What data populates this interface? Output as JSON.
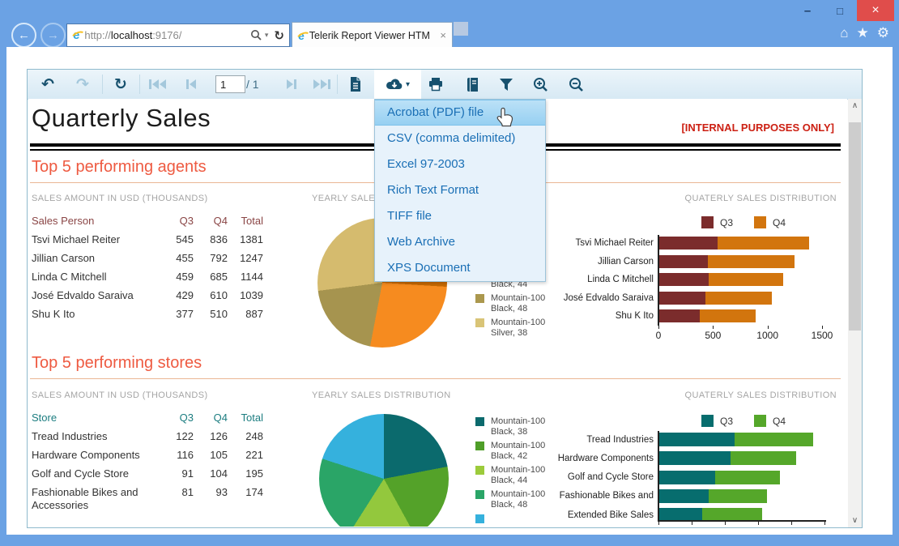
{
  "glyphs": {
    "minimize": "–",
    "maximize": "□",
    "close": "×",
    "back": "←",
    "forward": "→",
    "home": "⌂",
    "favorites": "★",
    "settings": "⚙",
    "address_caret": "▾",
    "address_refresh": "↻",
    "tab_close": "×",
    "undo": "↶",
    "redo": "↷",
    "refresh": "↻",
    "export_caret": "▾",
    "scroll_up": "∧",
    "scroll_down": "∨"
  },
  "browser": {
    "url": {
      "scheme": "http://",
      "host": "localhost",
      "rest": ":9176/"
    },
    "tab_title": "Telerik Report Viewer HTM..."
  },
  "toolbar": {
    "page_number": "1",
    "page_total": "/ 1"
  },
  "export_menu": {
    "highlighted": 0,
    "items": [
      "Acrobat (PDF) file",
      "CSV (comma delimited)",
      "Excel 97-2003",
      "Rich Text Format",
      "TIFF file",
      "Web Archive",
      "XPS Document"
    ]
  },
  "report": {
    "title": "Quarterly Sales",
    "watermark": "[INTERNAL PURPOSES ONLY]",
    "sections": [
      {
        "heading": "Top 5 performing agents",
        "caption": "SALES AMOUNT IN USD (THOUSANDS)",
        "pie_caption": "YEARLY SALES DISTRIBUTION",
        "bar_caption": "QUATERLY SALES DISTRIBUTION",
        "accent": "#8a4545",
        "table": {
          "headers": [
            "Sales Person",
            "Q3",
            "Q4",
            "Total"
          ],
          "rows": [
            [
              "Tsvi Michael Reiter",
              "545",
              "836",
              "1381"
            ],
            [
              "Jillian  Carson",
              "455",
              "792",
              "1247"
            ],
            [
              "Linda C Mitchell",
              "459",
              "685",
              "1144"
            ],
            [
              "José Edvaldo Saraiva",
              "429",
              "610",
              "1039"
            ],
            [
              "Shu K Ito",
              "377",
              "510",
              "887"
            ]
          ]
        },
        "pie": {
          "slices": [
            {
              "color": "#7a2e35",
              "value": 4
            },
            {
              "color": "#c76802",
              "value": 22
            },
            {
              "color": "#f68b1f",
              "value": 27
            },
            {
              "color": "#a6944f",
              "value": 20
            },
            {
              "color": "#d5bb6e",
              "value": 27
            }
          ],
          "legend": [
            {
              "line1": "Mountain-100",
              "line2": "Black, 44",
              "color": "#ed860d"
            },
            {
              "line1": "Mountain-100",
              "line2": "Black, 48",
              "color": "#ab984e"
            },
            {
              "line1": "Mountain-100",
              "line2": "Silver, 38",
              "color": "#d9c477"
            }
          ]
        },
        "bars": {
          "legend": [
            {
              "name": "Q3",
              "color": "#7b2c2c"
            },
            {
              "name": "Q4",
              "color": "#d2750e"
            }
          ],
          "categories": [
            "Tsvi Michael Reiter",
            "Jillian Carson",
            "Linda C Mitchell",
            "José Edvaldo Saraiva",
            "Shu K Ito"
          ],
          "q3": [
            545,
            455,
            459,
            429,
            377
          ],
          "q4": [
            836,
            792,
            685,
            610,
            510
          ],
          "xmax": 1500,
          "xticks": [
            "0",
            "500",
            "1000",
            "1500"
          ]
        }
      },
      {
        "heading": "Top 5 performing stores",
        "caption": "SALES AMOUNT IN USD (THOUSANDS)",
        "pie_caption": "YEARLY SALES DISTRIBUTION",
        "bar_caption": "QUATERLY SALES DISTRIBUTION",
        "accent": "#1c7d80",
        "table": {
          "headers": [
            "Store",
            "Q3",
            "Q4",
            "Total"
          ],
          "rows": [
            [
              "Tread Industries",
              "122",
              "126",
              "248"
            ],
            [
              "Hardware Components",
              "116",
              "105",
              "221"
            ],
            [
              "Golf and Cycle Store",
              "91",
              "104",
              "195"
            ],
            [
              "Fashionable Bikes and Accessories",
              "81",
              "93",
              "174"
            ]
          ]
        },
        "pie": {
          "slices": [
            {
              "color": "#0b6a6d",
              "value": 22
            },
            {
              "color": "#54a229",
              "value": 20
            },
            {
              "color": "#93c83d",
              "value": 17
            },
            {
              "color": "#2aa567",
              "value": 21
            },
            {
              "color": "#35b1dd",
              "value": 20
            }
          ],
          "legend": [
            {
              "line1": "Mountain-100",
              "line2": "Black, 38",
              "color": "#0b6a6d"
            },
            {
              "line1": "Mountain-100",
              "line2": "Black, 42",
              "color": "#4f9e28"
            },
            {
              "line1": "Mountain-100",
              "line2": "Black, 44",
              "color": "#9ccb3b"
            },
            {
              "line1": "Mountain-100",
              "line2": "Black, 48",
              "color": "#2aa567"
            },
            {
              "line1": "",
              "line2": "",
              "color": "#35b1dd"
            }
          ]
        },
        "bars": {
          "legend": [
            {
              "name": "Q3",
              "color": "#076d6e"
            },
            {
              "name": "Q4",
              "color": "#55a72a"
            }
          ],
          "categories": [
            "Tread Industries",
            "Hardware Components",
            "Golf and Cycle Store",
            "Fashionable Bikes and",
            "Extended Bike Sales"
          ],
          "q3": [
            122,
            116,
            91,
            81,
            70
          ],
          "q4": [
            126,
            105,
            104,
            93,
            96
          ],
          "xmax": 260,
          "xticks": []
        }
      }
    ]
  }
}
